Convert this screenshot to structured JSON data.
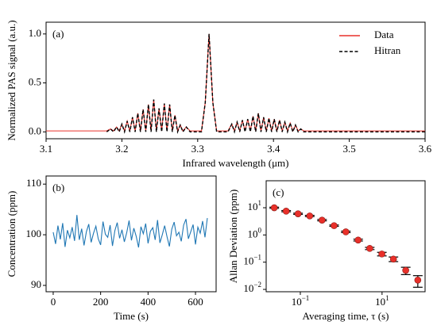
{
  "chart_data": [
    {
      "type": "line",
      "annotation": "(a)",
      "xlabel": "Infrared wavelength (μm)",
      "ylabel": "Normalized PAS signal (a.u.)",
      "legend": "upper right",
      "x": [
        3.1,
        3.18,
        3.185,
        3.189,
        3.193,
        3.1965,
        3.2,
        3.2035,
        3.207,
        3.2105,
        3.214,
        3.2175,
        3.221,
        3.2245,
        3.228,
        3.2315,
        3.235,
        3.2385,
        3.242,
        3.2455,
        3.249,
        3.2525,
        3.256,
        3.2595,
        3.263,
        3.2665,
        3.27,
        3.2735,
        3.277,
        3.2805,
        3.285,
        3.29,
        3.305,
        3.31,
        3.315,
        3.32,
        3.325,
        3.34,
        3.345,
        3.3485,
        3.352,
        3.3555,
        3.359,
        3.3625,
        3.366,
        3.3695,
        3.373,
        3.3765,
        3.38,
        3.3835,
        3.387,
        3.3905,
        3.394,
        3.3975,
        3.401,
        3.4045,
        3.408,
        3.4115,
        3.415,
        3.4185,
        3.422,
        3.4255,
        3.429,
        3.4325,
        3.436,
        3.44,
        3.6
      ],
      "series": [
        {
          "name": "Data",
          "color": "#e8302a",
          "linestyle": "solid",
          "values": [
            0.01,
            0.01,
            0.03,
            0.01,
            0.05,
            0.01,
            0.08,
            0.01,
            0.11,
            0.01,
            0.15,
            0.01,
            0.19,
            0.01,
            0.23,
            0.01,
            0.28,
            0.01,
            0.33,
            0.01,
            0.24,
            0.01,
            0.29,
            0.01,
            0.28,
            0.01,
            0.17,
            0.01,
            0.07,
            0.01,
            0.05,
            0.01,
            0.01,
            0.3,
            1.0,
            0.3,
            0.01,
            0.01,
            0.08,
            0.01,
            0.1,
            0.01,
            0.12,
            0.01,
            0.13,
            0.01,
            0.16,
            0.01,
            0.19,
            0.01,
            0.15,
            0.01,
            0.14,
            0.01,
            0.13,
            0.01,
            0.12,
            0.01,
            0.1,
            0.01,
            0.09,
            0.01,
            0.07,
            0.01,
            0.03,
            0.01,
            0.01
          ]
        },
        {
          "name": "Hitran",
          "color": "#000000",
          "linestyle": "dashed",
          "values": [
            null,
            0,
            0.03,
            0,
            0.05,
            0,
            0.08,
            0,
            0.11,
            0,
            0.15,
            0,
            0.19,
            0,
            0.23,
            0,
            0.28,
            0,
            0.33,
            0,
            0.24,
            0,
            0.29,
            0,
            0.28,
            0,
            0.17,
            0,
            0.07,
            0,
            0.05,
            0,
            0,
            0.3,
            1.0,
            0.3,
            0,
            0,
            0.08,
            0,
            0.1,
            0,
            0.12,
            0,
            0.13,
            0,
            0.16,
            0,
            0.19,
            0,
            0.15,
            0,
            0.14,
            0,
            0.13,
            0,
            0.12,
            0,
            0.1,
            0,
            0.09,
            0,
            0.07,
            0,
            0.03,
            0,
            0
          ]
        }
      ],
      "xlim": [
        3.1,
        3.6
      ],
      "xticks": [
        3.1,
        3.2,
        3.3,
        3.4,
        3.5,
        3.6
      ],
      "ylim": [
        -0.07,
        1.12
      ],
      "yticks": [
        {
          "value": 0,
          "label": "0.0"
        },
        0.5,
        {
          "value": 1,
          "label": "1.0"
        }
      ]
    },
    {
      "type": "line",
      "annotation": "(b)",
      "xlabel": "Time (s)",
      "ylabel": "Concentration (ppm)",
      "x": [
        0,
        10,
        20,
        30,
        40,
        50,
        60,
        70,
        80,
        90,
        100,
        110,
        120,
        130,
        140,
        150,
        160,
        170,
        180,
        190,
        200,
        210,
        220,
        230,
        240,
        250,
        260,
        270,
        280,
        290,
        300,
        310,
        320,
        330,
        340,
        350,
        360,
        370,
        380,
        390,
        400,
        410,
        420,
        430,
        440,
        450,
        460,
        470,
        480,
        490,
        500,
        510,
        520,
        530,
        540,
        550,
        560,
        570,
        580,
        590,
        600,
        610,
        620,
        630,
        640,
        650
      ],
      "series": [
        {
          "color": "#1f77b4",
          "linestyle": "solid",
          "values": [
            100.5,
            98.2,
            101.8,
            99.1,
            102.3,
            97.6,
            100.9,
            99.4,
            101.5,
            98.8,
            103.9,
            99.0,
            101.2,
            97.9,
            100.6,
            102.1,
            98.5,
            100.3,
            101.7,
            99.2,
            98.0,
            102.6,
            100.1,
            99.5,
            101.9,
            97.8,
            100.8,
            102.4,
            99.3,
            101.0,
            98.6,
            100.4,
            102.8,
            98.9,
            101.3,
            99.7,
            97.5,
            101.6,
            100.2,
            102.2,
            98.3,
            100.7,
            101.4,
            99.0,
            102.9,
            98.4,
            100.0,
            101.8,
            99.6,
            97.7,
            101.1,
            102.5,
            99.8,
            100.5,
            98.7,
            101.9,
            103.1,
            99.2,
            100.6,
            102.0,
            98.1,
            101.5,
            100.3,
            102.7,
            99.5,
            103.3
          ]
        }
      ],
      "xlim": [
        -30,
        687
      ],
      "xticks": [
        0,
        200,
        400,
        600
      ],
      "ylim": [
        88.75,
        111.6
      ],
      "yticks": [
        90,
        100,
        110
      ]
    },
    {
      "type": "scatter",
      "annotation": "(c)",
      "xlabel": "Averaging time, τ (s)",
      "ylabel": "Allan Deviation (ppm)",
      "xlog": true,
      "ylog": true,
      "color": "#e8302a",
      "x": [
        0.023,
        0.045,
        0.088,
        0.17,
        0.34,
        0.67,
        1.3,
        2.6,
        5.0,
        9.9,
        19,
        38,
        75
      ],
      "values": [
        10,
        7.5,
        6,
        5,
        3.5,
        2.2,
        1.3,
        0.65,
        0.32,
        0.2,
        0.13,
        0.05,
        0.022
      ],
      "errors": [
        0.5,
        0.4,
        0.3,
        0.25,
        0.2,
        0.12,
        0.08,
        0.05,
        0.03,
        0.03,
        0.025,
        0.015,
        0.01
      ],
      "xlim": [
        0.0146,
        113
      ],
      "xticks": [
        {
          "value": 0.1,
          "label": "10",
          "exponent": "−1"
        },
        {
          "value": 10,
          "label": "10",
          "exponent": "1"
        }
      ],
      "ylim": [
        0.0082,
        98
      ],
      "yticks": [
        {
          "value": 0.01,
          "label": "10",
          "exponent": "−2"
        },
        {
          "value": 0.1,
          "label": "10",
          "exponent": "−1"
        },
        {
          "value": 1,
          "label": "10",
          "exponent": "0"
        },
        {
          "value": 10,
          "label": "10",
          "exponent": "1"
        }
      ]
    }
  ]
}
